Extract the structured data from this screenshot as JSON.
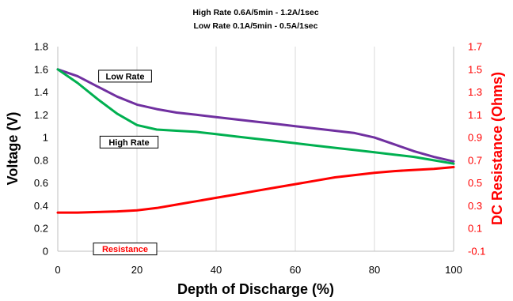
{
  "chart_data": {
    "type": "line",
    "title_lines": [
      "High Rate 0.6A/5min - 1.2A/1sec",
      "Low Rate 0.1A/5min - 0.5A/1sec"
    ],
    "xlabel": "Depth of Discharge (%)",
    "ylabel": "Voltage (V)",
    "y2label": "DC Resistance (Ohms)",
    "xlim": [
      0,
      100
    ],
    "ylim": [
      0,
      1.8
    ],
    "y2lim": [
      -0.1,
      1.7
    ],
    "xticks": [
      0,
      20,
      40,
      60,
      80,
      100
    ],
    "yticks": [
      "0",
      "0.2",
      "0.4",
      "0.6",
      "0.8",
      "1",
      "1.2",
      "1.4",
      "1.6",
      "1.8"
    ],
    "y2ticks": [
      "-0.1",
      "0.1",
      "0.3",
      "0.5",
      "0.7",
      "0.9",
      "1.1",
      "1.3",
      "1.5",
      "1.7"
    ],
    "grid": "vertical",
    "series": [
      {
        "name": "Low Rate",
        "axis": "left",
        "color": "#7030a0",
        "x": [
          0,
          5,
          10,
          15,
          20,
          25,
          30,
          35,
          40,
          45,
          50,
          55,
          60,
          65,
          70,
          75,
          80,
          85,
          90,
          95,
          100
        ],
        "y": [
          1.6,
          1.54,
          1.45,
          1.36,
          1.29,
          1.25,
          1.22,
          1.2,
          1.18,
          1.16,
          1.14,
          1.12,
          1.1,
          1.08,
          1.06,
          1.04,
          1.0,
          0.94,
          0.88,
          0.83,
          0.79
        ]
      },
      {
        "name": "High Rate",
        "axis": "left",
        "color": "#00b050",
        "x": [
          0,
          5,
          10,
          15,
          20,
          25,
          30,
          35,
          40,
          45,
          50,
          55,
          60,
          65,
          70,
          75,
          80,
          85,
          90,
          95,
          100
        ],
        "y": [
          1.6,
          1.48,
          1.34,
          1.21,
          1.11,
          1.07,
          1.06,
          1.05,
          1.03,
          1.01,
          0.99,
          0.97,
          0.95,
          0.93,
          0.91,
          0.89,
          0.87,
          0.85,
          0.83,
          0.8,
          0.77
        ]
      },
      {
        "name": "Resistance",
        "axis": "right",
        "color": "#ff0000",
        "x": [
          0,
          5,
          10,
          15,
          20,
          25,
          30,
          35,
          40,
          45,
          50,
          55,
          60,
          65,
          70,
          75,
          80,
          85,
          90,
          95,
          100
        ],
        "y": [
          0.24,
          0.24,
          0.245,
          0.25,
          0.26,
          0.28,
          0.31,
          0.34,
          0.37,
          0.4,
          0.43,
          0.46,
          0.49,
          0.52,
          0.55,
          0.57,
          0.59,
          0.605,
          0.615,
          0.625,
          0.64
        ]
      }
    ],
    "annotations": [
      {
        "text": "Low Rate",
        "x": 17,
        "y": 1.54,
        "color": "#000000"
      },
      {
        "text": "High Rate",
        "x": 18,
        "y": 0.96,
        "color": "#000000"
      },
      {
        "text": "Resistance",
        "x": 17,
        "y": 0.02,
        "color": "#ff0000"
      }
    ]
  }
}
